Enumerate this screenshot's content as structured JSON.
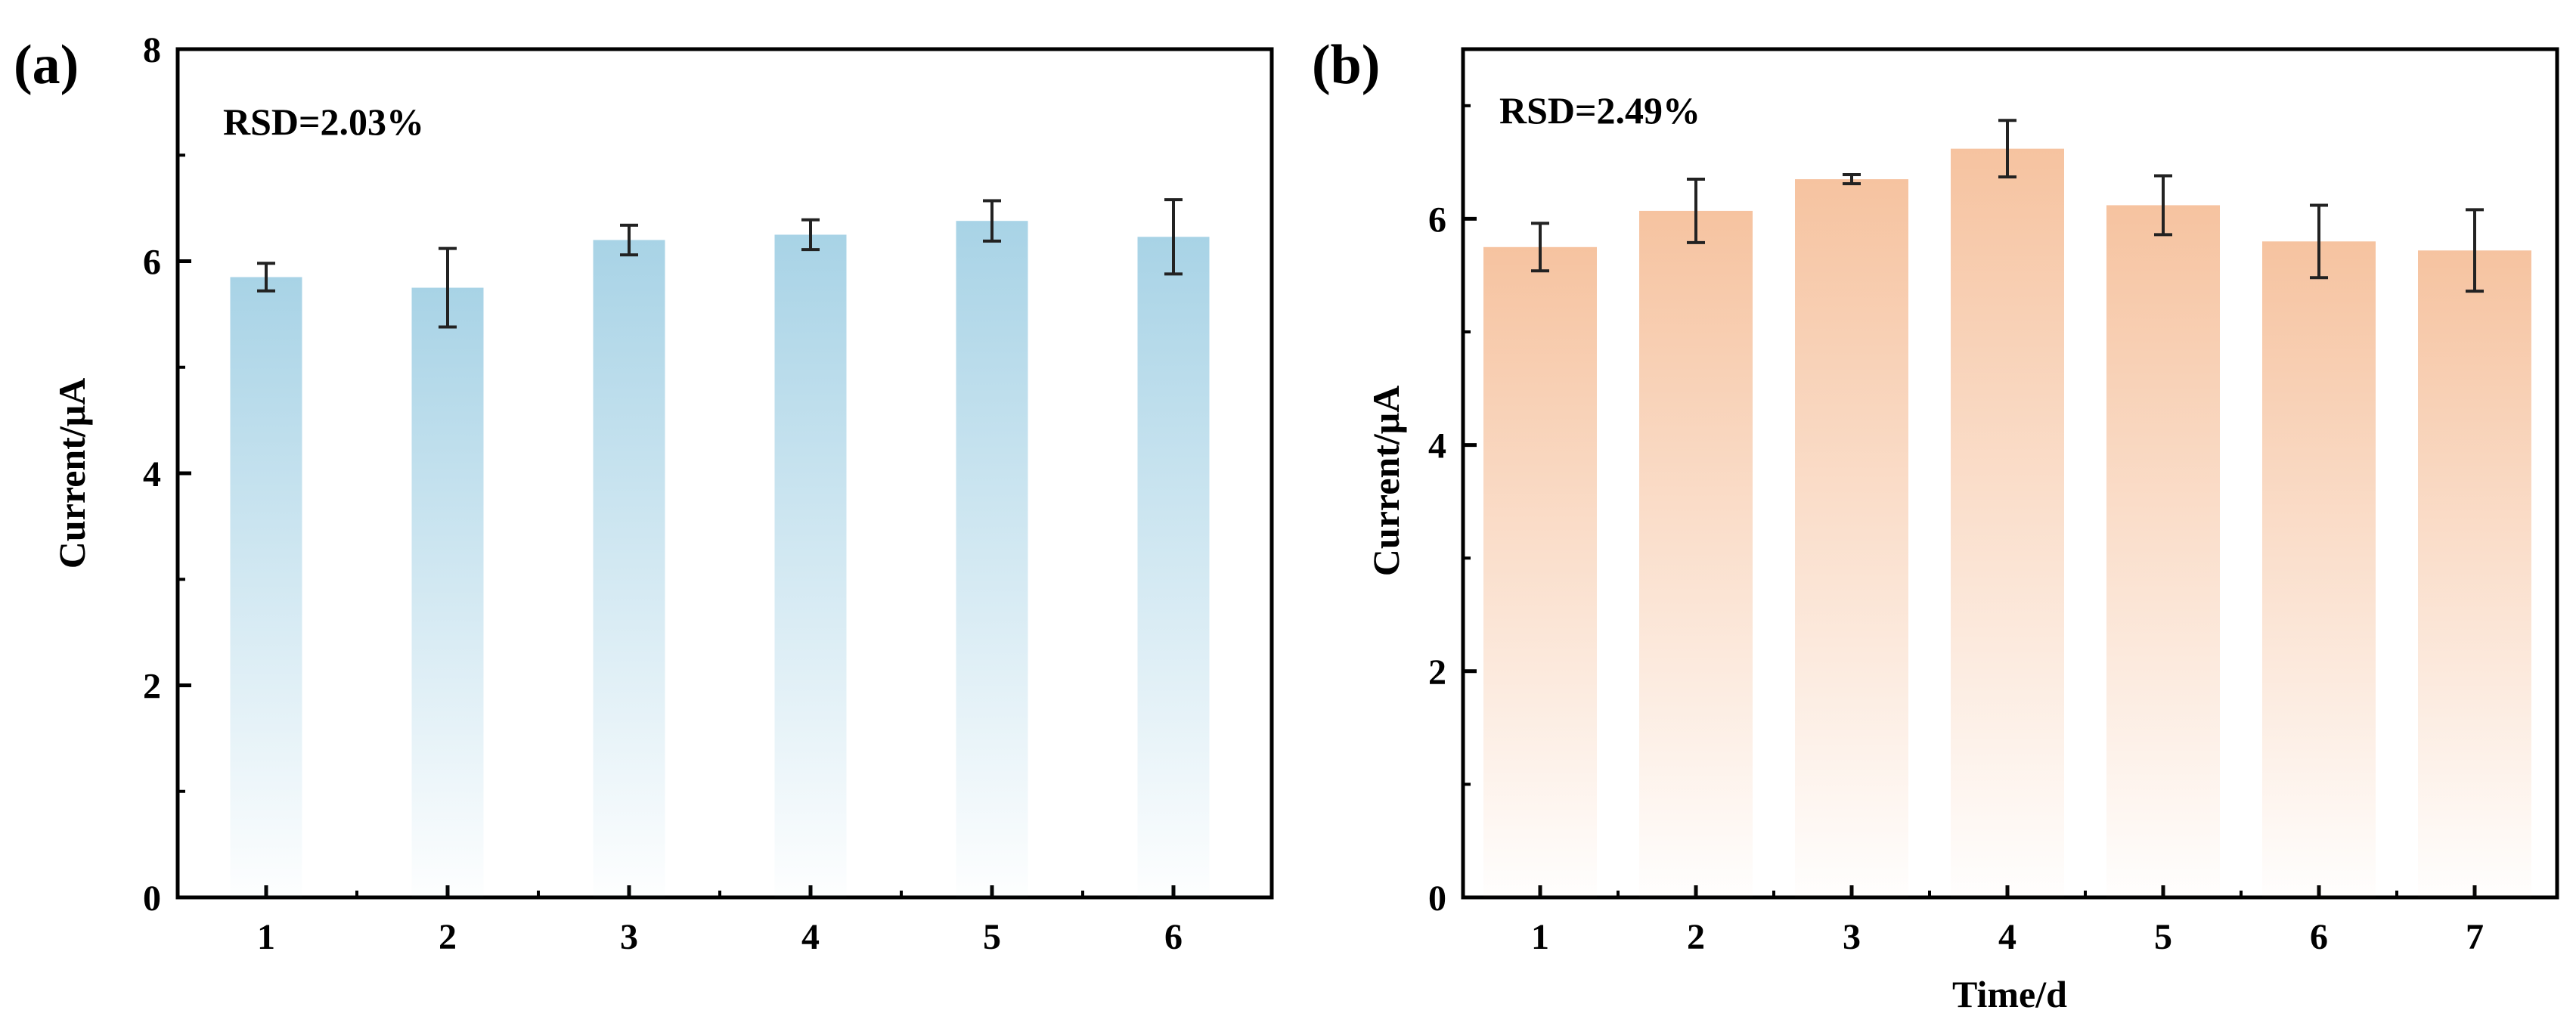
{
  "chart_data": [
    {
      "type": "bar",
      "panel_label": "(a)",
      "annotation": "RSD=2.03%",
      "xlabel": "",
      "ylabel": "Current/μA",
      "categories": [
        "1",
        "2",
        "3",
        "4",
        "5",
        "6"
      ],
      "values": [
        5.85,
        5.75,
        6.2,
        6.25,
        6.38,
        6.23
      ],
      "errors": [
        0.13,
        0.37,
        0.14,
        0.14,
        0.19,
        0.35
      ],
      "ylim": [
        0,
        8
      ],
      "yticks": [
        "0",
        "2",
        "4",
        "6",
        "8"
      ],
      "bar_color": "#a8d3e6",
      "grid": false
    },
    {
      "type": "bar",
      "panel_label": "(b)",
      "annotation": "RSD=2.49%",
      "xlabel": "Time/d",
      "ylabel": "Current/μA",
      "categories": [
        "1",
        "2",
        "3",
        "4",
        "5",
        "6",
        "7"
      ],
      "values": [
        5.75,
        6.07,
        6.35,
        6.62,
        6.12,
        5.8,
        5.72
      ],
      "errors": [
        0.21,
        0.28,
        0.04,
        0.25,
        0.26,
        0.32,
        0.36
      ],
      "ylim": [
        0,
        7.5
      ],
      "yticks": [
        "0",
        "2",
        "4",
        "6"
      ],
      "bar_color": "#f6c3a0",
      "grid": false
    }
  ]
}
